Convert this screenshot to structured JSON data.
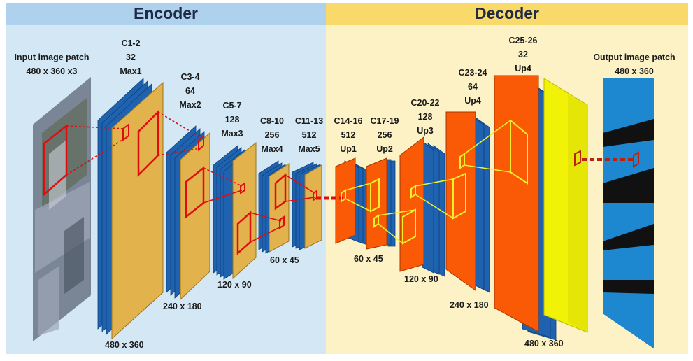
{
  "headers": {
    "encoder": "Encoder",
    "decoder": "Decoder"
  },
  "input": {
    "title": "Input image patch",
    "size": "480 x 360 x3"
  },
  "output": {
    "title": "Output image patch",
    "size": "480 x 360"
  },
  "blocks": [
    {
      "name": "C1-2",
      "channels": "32",
      "op": "Max1"
    },
    {
      "name": "C3-4",
      "channels": "64",
      "op": "Max2"
    },
    {
      "name": "C5-7",
      "channels": "128",
      "op": "Max3"
    },
    {
      "name": "C8-10",
      "channels": "256",
      "op": "Max4"
    },
    {
      "name": "C11-13",
      "channels": "512",
      "op": "Max5"
    },
    {
      "name": "C14-16",
      "channels": "512",
      "op": "Up1"
    },
    {
      "name": "C17-19",
      "channels": "256",
      "op": "Up2"
    },
    {
      "name": "C20-22",
      "channels": "128",
      "op": "Up3"
    },
    {
      "name": "C23-24",
      "channels": "64",
      "op": "Up4"
    },
    {
      "name": "C25-26",
      "channels": "32",
      "op": "Up4"
    }
  ],
  "dims": {
    "enc1": "480 x 360",
    "enc2": "240 x 180",
    "enc3": "120 x 90",
    "enc4": "60 x 45",
    "dec4": "60 x 45",
    "dec3": "120 x 90",
    "dec2": "240 x 180",
    "dec1": "480 x 360"
  },
  "colors": {
    "encoder_bg": "#d3e7f5",
    "decoder_bg": "#fdf2c6",
    "encoder_header": "#aed1ee",
    "decoder_header": "#fad96b",
    "blue_layer": "#1f63b0",
    "gold_layer": "#e2b34d",
    "orange_layer": "#fa5a06",
    "yellow_layer": "#f2f207",
    "link_red": "#e10d0d",
    "link_yellow": "#efef2a",
    "dashed_link": "#b8230e",
    "seg_blue": "#1d87cf"
  }
}
